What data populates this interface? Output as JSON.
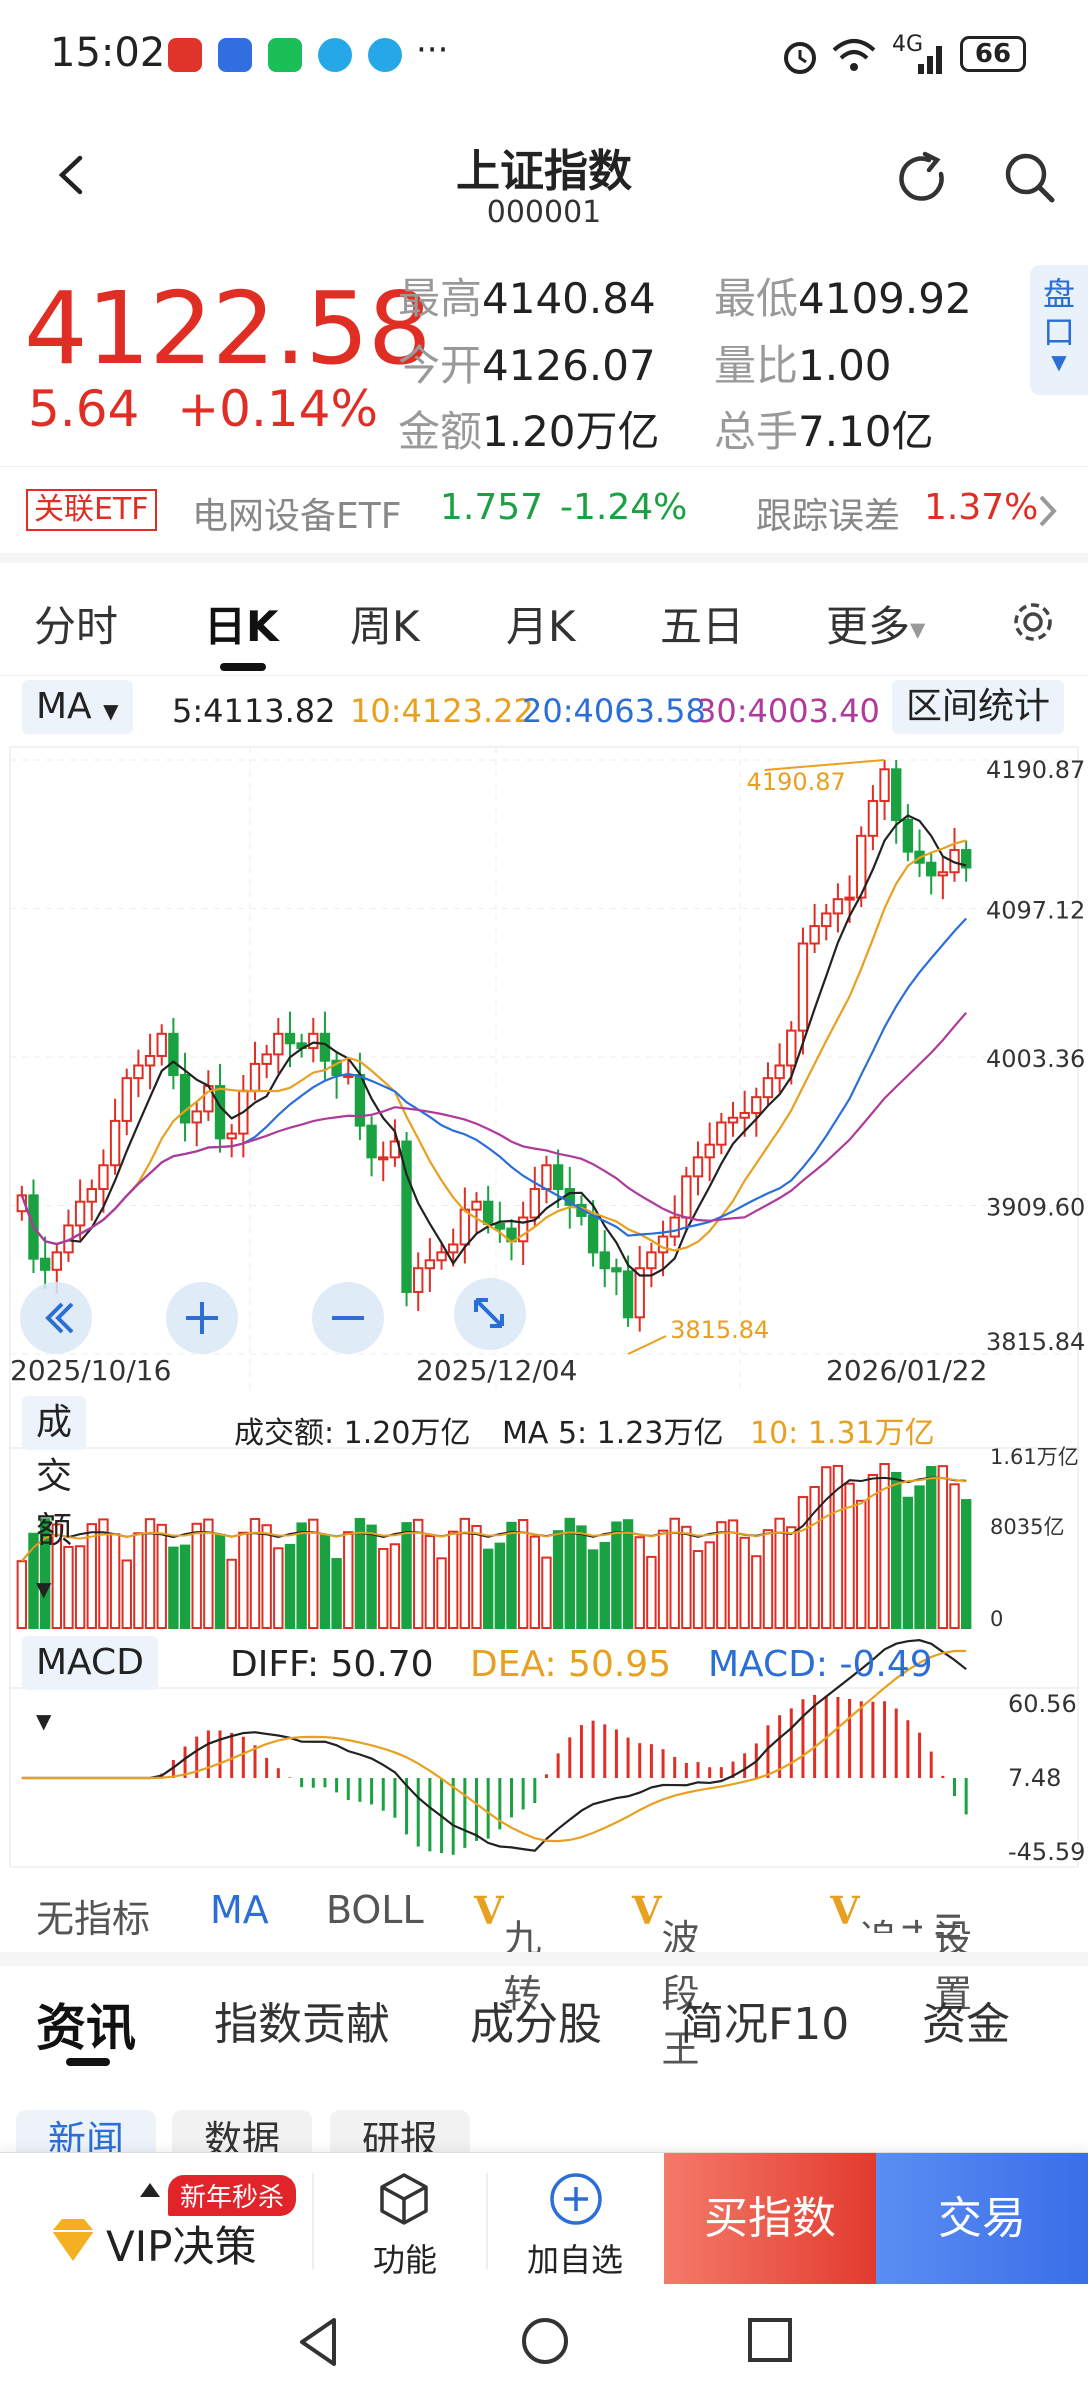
{
  "status": {
    "time": "15:02",
    "battery": "66",
    "net": "4G",
    "dots": "···"
  },
  "header": {
    "title": "上证指数",
    "code": "000001"
  },
  "quote": {
    "price": "4122.58",
    "change": "5.64",
    "change_pct": "+0.14%",
    "high_label": "最高",
    "high": "4140.84",
    "low_label": "最低",
    "low": "4109.92",
    "open_label": "今开",
    "open": "4126.07",
    "vol_ratio_label": "量比",
    "vol_ratio": "1.00",
    "amount_label": "金额",
    "amount": "1.20万亿",
    "hands_label": "总手",
    "hands": "7.10亿",
    "pankou": "盘口"
  },
  "etf": {
    "tag": "关联ETF",
    "name": "电网设备ETF",
    "price": "1.757",
    "pct": "-1.24%",
    "track_label": "跟踪误差",
    "track_value": "1.37%"
  },
  "tabs": [
    "分时",
    "日K",
    "周K",
    "月K",
    "五日",
    "更多"
  ],
  "ma": {
    "selector": "MA",
    "ma5": "5:4113.82",
    "ma10": "10:4123.22",
    "ma20": "20:4063.58",
    "ma30": "30:4003.40",
    "range_stats": "区间统计"
  },
  "kline": {
    "y_labels": [
      "4190.87",
      "4097.12",
      "4003.36",
      "3909.60",
      "3815.84"
    ],
    "dates": [
      "2025/10/16",
      "2025/12/04",
      "2026/01/22"
    ],
    "max_mark": "4190.87",
    "min_mark": "3815.84",
    "ylim": [
      3815.84,
      4190.87
    ],
    "closes": [
      3916,
      3876,
      3869,
      3880,
      3897,
      3912,
      3920,
      3935,
      3963,
      3990,
      3998,
      4004,
      4018,
      3992,
      3962,
      3969,
      3985,
      3952,
      3955,
      3982,
      3999,
      4005,
      4018,
      4012,
      4009,
      4018,
      4001,
      3992,
      3992,
      3960,
      3940,
      3940,
      3950,
      3855,
      3870,
      3875,
      3880,
      3885,
      3907,
      3912,
      3898,
      3895,
      3887,
      3902,
      3920,
      3935,
      3920,
      3910,
      3903,
      3880,
      3870,
      3868,
      3839,
      3870,
      3880,
      3890,
      3902,
      3928,
      3940,
      3948,
      3962,
      3965,
      3968,
      3978,
      3990,
      3998,
      4020,
      4075,
      4086,
      4094,
      4103,
      4104,
      4143,
      4165,
      4185,
      4153,
      4133,
      4126,
      4118,
      4120,
      4134,
      4123
    ]
  },
  "volume": {
    "selector": "成交额",
    "label": "成交额: 1.20万亿",
    "ma5": "MA 5: 1.23万亿",
    "ma10": "10: 1.31万亿",
    "y_labels": [
      "1.61万亿",
      "8035亿",
      "0"
    ]
  },
  "macd": {
    "selector": "MACD",
    "diff": "DIFF: 50.70",
    "dea": "DEA: 50.95",
    "macd": "MACD: -0.49",
    "y_labels": [
      "60.56",
      "7.48",
      "-45.59"
    ]
  },
  "indicators": [
    "无指标",
    "MA",
    "BOLL",
    "九转",
    "波段王",
    "追击",
    "设置"
  ],
  "info_tabs": [
    "资讯",
    "指数贡献",
    "成分股",
    "简况F10",
    "资金"
  ],
  "sub_tabs": [
    "新闻",
    "数据",
    "研报"
  ],
  "bottom": {
    "vip": "VIP决策",
    "promo": "新年秒杀",
    "func": "功能",
    "add": "加自选",
    "buy": "买指数",
    "trade": "交易"
  },
  "colors": {
    "up": "#e02e24",
    "down": "#1aa141",
    "ma5": "#222222",
    "ma10": "#e8a020",
    "ma20": "#2b6fd6",
    "ma30": "#b03a9a"
  }
}
